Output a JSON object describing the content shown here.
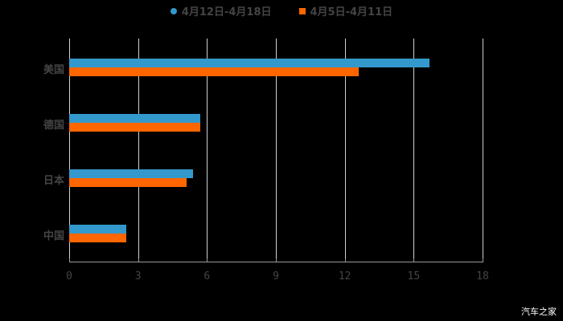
{
  "chart_data": {
    "type": "bar",
    "orientation": "horizontal",
    "title": "",
    "xlabel": "",
    "ylabel": "",
    "categories": [
      "美国",
      "德国",
      "日本",
      "中国"
    ],
    "series": [
      {
        "name": "4月12日-4月18日",
        "color": "#3399CC",
        "values": [
          15.7,
          5.7,
          5.4,
          2.5
        ]
      },
      {
        "name": "4月5日-4月11日",
        "color": "#FF6600",
        "values": [
          12.6,
          5.7,
          5.1,
          2.5
        ]
      }
    ],
    "xlim": [
      0,
      18
    ],
    "xticks": [
      "0",
      "3",
      "6",
      "9",
      "12",
      "15",
      "18"
    ],
    "grid": true,
    "legend_position": "top"
  },
  "legend": [
    {
      "label": "4月12日-4月18日",
      "color": "#3399CC",
      "marker": "circle"
    },
    {
      "label": "4月5日-4月11日",
      "color": "#FF6600",
      "marker": "square"
    }
  ],
  "watermark": "汽车之家"
}
